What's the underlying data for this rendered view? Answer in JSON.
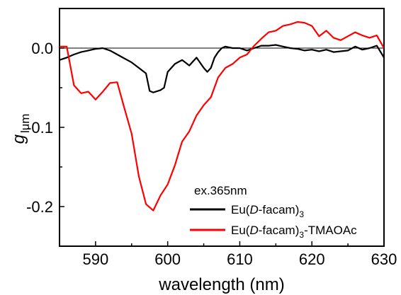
{
  "chart_data": {
    "type": "line",
    "xlabel": "wavelength (nm)",
    "ylabel": "g",
    "ylabel_subscript": "lum",
    "xlim": [
      585,
      630
    ],
    "ylim": [
      -0.25,
      0.05
    ],
    "xticks": [
      590,
      600,
      610,
      620,
      630
    ],
    "xtick_labels": [
      "590",
      "600",
      "610",
      "620",
      "630"
    ],
    "yticks": [
      0.0,
      -0.1,
      -0.2
    ],
    "ytick_labels": [
      "0.0",
      "-0.1",
      "-0.2"
    ],
    "zero_line": true,
    "grid": false,
    "legend_placement": "lower-right",
    "annotation": "ex.365nm",
    "series": [
      {
        "name": "Eu(D-facam)3",
        "legend_parts": [
          "Eu(",
          "D",
          "-facam)",
          "3",
          ""
        ],
        "color": "#000000",
        "x": [
          585,
          586,
          587,
          588,
          589,
          590,
          591,
          592,
          593,
          594,
          595,
          596,
          597,
          597.5,
          598,
          599,
          599.5,
          600,
          600.5,
          601,
          602,
          603,
          604,
          605,
          605.5,
          606,
          606.5,
          607,
          607.5,
          608,
          609,
          610,
          611,
          612,
          613,
          614,
          615,
          616,
          617,
          618,
          619,
          620,
          621,
          622,
          623,
          624,
          625,
          626,
          627,
          628,
          629,
          630
        ],
        "y": [
          -0.015,
          -0.012,
          -0.008,
          -0.005,
          -0.003,
          -0.001,
          0.0,
          -0.003,
          -0.008,
          -0.013,
          -0.018,
          -0.025,
          -0.032,
          -0.054,
          -0.056,
          -0.053,
          -0.05,
          -0.03,
          -0.025,
          -0.02,
          -0.015,
          -0.022,
          -0.012,
          -0.025,
          -0.03,
          -0.025,
          -0.012,
          -0.005,
          0.0,
          0.002,
          0.0,
          0.0,
          -0.003,
          0.0,
          0.003,
          0.003,
          0.004,
          0.002,
          0.0,
          -0.001,
          -0.003,
          -0.002,
          -0.004,
          -0.002,
          -0.005,
          -0.004,
          -0.003,
          0.002,
          -0.002,
          0.0,
          0.003,
          -0.012
        ]
      },
      {
        "name": "Eu(D-facam)3-TMAOAc",
        "legend_parts": [
          "Eu(",
          "D",
          "-facam)",
          "3",
          "-TMAOAc"
        ],
        "color": "#ff0000",
        "x": [
          585,
          586,
          587,
          588,
          589,
          590,
          591,
          592,
          593,
          594,
          595,
          596,
          597,
          598,
          599,
          600,
          601,
          602,
          603,
          604,
          605,
          606,
          607,
          608,
          609,
          610,
          611,
          612,
          613,
          614,
          615,
          616,
          617,
          618,
          619,
          620,
          621,
          622,
          623,
          624,
          625,
          626,
          627,
          628,
          629,
          630
        ],
        "y": [
          0.002,
          0.002,
          -0.047,
          -0.057,
          -0.055,
          -0.065,
          -0.055,
          -0.044,
          -0.043,
          -0.076,
          -0.108,
          -0.162,
          -0.197,
          -0.205,
          -0.186,
          -0.172,
          -0.148,
          -0.118,
          -0.105,
          -0.085,
          -0.072,
          -0.062,
          -0.037,
          -0.025,
          -0.02,
          -0.012,
          -0.008,
          0.003,
          0.012,
          0.02,
          0.022,
          0.028,
          0.03,
          0.033,
          0.032,
          0.028,
          0.015,
          0.022,
          0.013,
          0.01,
          0.015,
          0.02,
          0.016,
          0.013,
          0.016,
          0.0
        ]
      }
    ]
  }
}
